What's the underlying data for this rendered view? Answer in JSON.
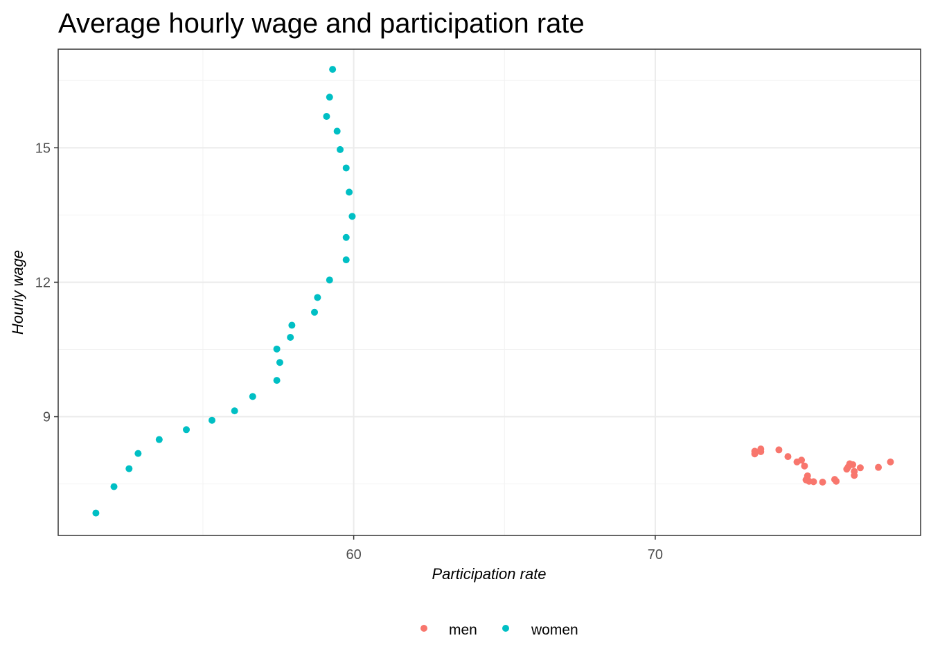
{
  "chart_data": {
    "type": "scatter",
    "title": "Average hourly wage and participation rate",
    "xlabel": "Participation rate",
    "ylabel": "Hourly wage",
    "xlim": [
      50.2,
      78.8
    ],
    "ylim": [
      6.35,
      17.2
    ],
    "x_ticks": [
      60,
      70
    ],
    "y_ticks": [
      9,
      12,
      15
    ],
    "grid": true,
    "legend_position": "bottom",
    "series": [
      {
        "name": "men",
        "color": "#F8766D",
        "points": [
          [
            73.3,
            8.17
          ],
          [
            73.3,
            8.23
          ],
          [
            73.5,
            8.22
          ],
          [
            73.5,
            8.28
          ],
          [
            74.1,
            8.26
          ],
          [
            74.4,
            8.11
          ],
          [
            74.7,
            7.99
          ],
          [
            74.85,
            8.03
          ],
          [
            74.95,
            7.9
          ],
          [
            75.0,
            7.59
          ],
          [
            75.05,
            7.68
          ],
          [
            75.1,
            7.56
          ],
          [
            75.25,
            7.55
          ],
          [
            75.55,
            7.54
          ],
          [
            75.95,
            7.6
          ],
          [
            76.0,
            7.56
          ],
          [
            76.35,
            7.83
          ],
          [
            76.4,
            7.88
          ],
          [
            76.45,
            7.95
          ],
          [
            76.55,
            7.93
          ],
          [
            76.6,
            7.78
          ],
          [
            76.6,
            7.69
          ],
          [
            76.8,
            7.86
          ],
          [
            77.4,
            7.87
          ],
          [
            77.8,
            7.99
          ]
        ]
      },
      {
        "name": "women",
        "color": "#00BFC4",
        "points": [
          [
            51.45,
            6.85
          ],
          [
            52.05,
            7.44
          ],
          [
            52.55,
            7.84
          ],
          [
            52.85,
            8.18
          ],
          [
            53.55,
            8.49
          ],
          [
            54.45,
            8.71
          ],
          [
            55.3,
            8.92
          ],
          [
            56.05,
            9.13
          ],
          [
            56.65,
            9.45
          ],
          [
            57.45,
            9.81
          ],
          [
            57.45,
            10.51
          ],
          [
            57.55,
            10.21
          ],
          [
            57.9,
            10.77
          ],
          [
            57.95,
            11.04
          ],
          [
            58.7,
            11.33
          ],
          [
            58.8,
            11.66
          ],
          [
            59.2,
            12.05
          ],
          [
            59.75,
            12.5
          ],
          [
            59.75,
            13.0
          ],
          [
            59.95,
            13.47
          ],
          [
            59.85,
            14.01
          ],
          [
            59.75,
            14.55
          ],
          [
            59.55,
            14.96
          ],
          [
            59.45,
            15.37
          ],
          [
            59.1,
            15.7
          ],
          [
            59.2,
            16.13
          ],
          [
            59.3,
            16.75
          ]
        ]
      }
    ]
  }
}
